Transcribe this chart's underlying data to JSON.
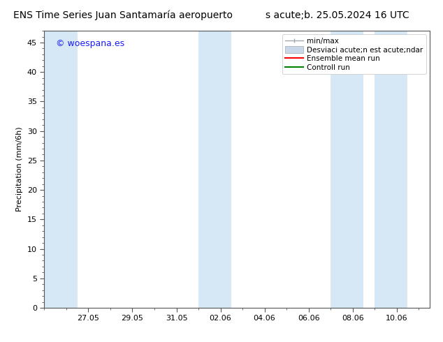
{
  "title_left": "ENS Time Series Juan Santamaría aeropuerto",
  "title_right": "s acute;b. 25.05.2024 16 UTC",
  "ylabel": "Precipitation (mm/6h)",
  "ylim": [
    0,
    47
  ],
  "yticks": [
    0,
    5,
    10,
    15,
    20,
    25,
    30,
    35,
    40,
    45
  ],
  "xtick_labels": [
    "27.05",
    "29.05",
    "31.05",
    "02.06",
    "04.06",
    "06.06",
    "08.06",
    "10.06"
  ],
  "xtick_positions": [
    2,
    4,
    6,
    8,
    10,
    12,
    14,
    16
  ],
  "x_min": 0.0,
  "x_max": 17.5,
  "watermark": "© woespana.es",
  "watermark_color": "#1a1aff",
  "bg_color": "#ffffff",
  "plot_bg_color": "#ffffff",
  "shade_ranges": [
    [
      0.0,
      1.5
    ],
    [
      7.0,
      8.5
    ],
    [
      13.0,
      14.5
    ],
    [
      15.0,
      16.5
    ]
  ],
  "shade_color": "#d6e8f5",
  "legend_label_minmax": "min/max",
  "legend_label_std": "Desviaci acute;n est acute;ndar",
  "legend_label_ens": "Ensemble mean run",
  "legend_label_ctrl": "Controll run",
  "legend_minmax_color": "#a0a8b0",
  "legend_std_color": "#c8d8e8",
  "legend_ens_color": "#ff0000",
  "legend_ctrl_color": "#008000",
  "font_size_title": 10,
  "font_size_axis": 8,
  "font_size_legend": 7.5,
  "font_size_watermark": 9,
  "spine_color": "#555555",
  "tick_color": "#555555"
}
